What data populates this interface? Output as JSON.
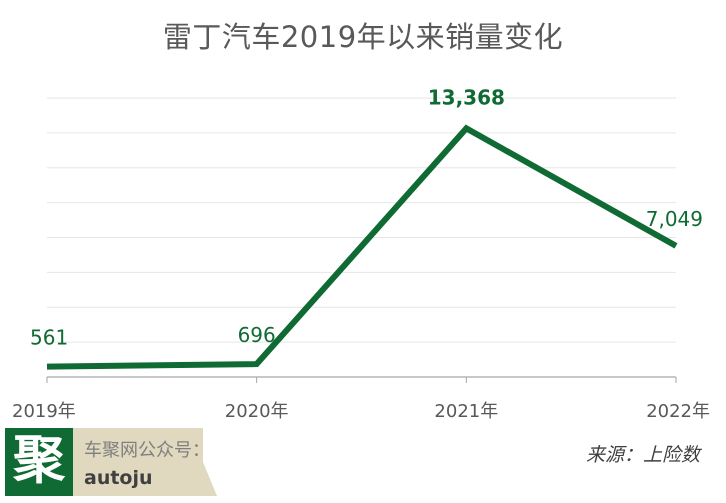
{
  "chart_data": {
    "type": "line",
    "title": "雷丁汽车2019年以来销量变化",
    "categories": [
      "2019年",
      "2020年",
      "2021年",
      "2022年"
    ],
    "series": [
      {
        "values": [
          561,
          696,
          13368,
          7049
        ]
      }
    ],
    "data_labels": [
      "561",
      "696",
      "13,368",
      "7,049"
    ],
    "ylim": [
      0,
      15000
    ],
    "grid": true,
    "line_color": "#0f6b33",
    "label_color": "#0f6b33"
  },
  "footer": {
    "logo_char": "聚",
    "wechat_label": "车聚网公众号：",
    "account": "autoju",
    "source": "来源：上险数"
  }
}
